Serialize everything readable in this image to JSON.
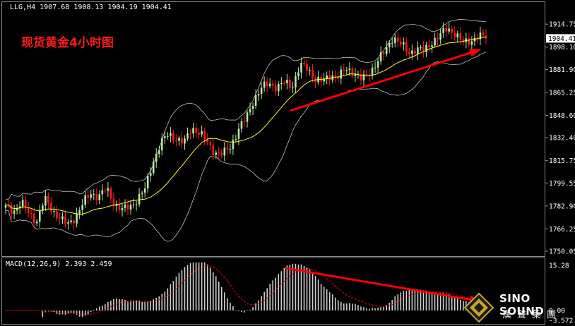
{
  "window": {
    "symbol_line": "LLG,H4  1907.68 1908.13 1904.19 1904.41",
    "title_cn": "现货黄金4小时图"
  },
  "price_axis": {
    "labels": [
      "1914.75",
      "1898.10",
      "1881.90",
      "1865.25",
      "1848.60",
      "1832.40",
      "1815.75",
      "1799.55",
      "1782.90",
      "1766.25",
      "1750.05"
    ],
    "current_price": "1904.41",
    "range": [
      1750.05,
      1921.0
    ]
  },
  "macd": {
    "label": "MACD(12,26,9) 2.393 2.459",
    "axis_labels": [
      "15.28",
      "0.00",
      "-3.572"
    ],
    "range": [
      -3.572,
      15.28
    ]
  },
  "logo": {
    "brand": "SINO SOUND",
    "chinese": "漢聲集團"
  },
  "chart_data": {
    "type": "candlestick",
    "timeframe": "H4",
    "symbol": "LLG",
    "last_bar": {
      "open": 1907.68,
      "high": 1908.13,
      "low": 1904.19,
      "close": 1904.41
    },
    "ylim": [
      1750.05,
      1921.0
    ],
    "close_path": [
      1782,
      1779,
      1786,
      1777,
      1772,
      1788,
      1780,
      1774,
      1769,
      1775,
      1785,
      1792,
      1790,
      1795,
      1785,
      1780,
      1782,
      1788,
      1795,
      1815,
      1828,
      1835,
      1832,
      1828,
      1840,
      1836,
      1829,
      1822,
      1820,
      1826,
      1838,
      1846,
      1860,
      1868,
      1872,
      1869,
      1872,
      1870,
      1885,
      1882,
      1875,
      1873,
      1878,
      1877,
      1882,
      1880,
      1874,
      1880,
      1888,
      1895,
      1906,
      1900,
      1894,
      1897,
      1895,
      1902,
      1906,
      1912,
      1908,
      1901,
      1903,
      1906,
      1904.4
    ],
    "trend_lines": [
      {
        "panel": "price",
        "from": [
          0.53,
          1852
        ],
        "to": [
          0.88,
          1896
        ],
        "color": "#ff0000"
      },
      {
        "panel": "macd",
        "from": [
          0.52,
          13.5
        ],
        "to": [
          0.88,
          3.0
        ],
        "color": "#ff0000"
      }
    ]
  },
  "colors": {
    "background": "#000000",
    "bull_candle": "#b8e6a4",
    "bear_candle": "#ff1a1a",
    "ma_line": "#ffff00",
    "bollinger": "#bfbfbf",
    "macd_hist": "#cfcfcf",
    "macd_signal": "#ff0000",
    "trend_arrow": "#ff0000"
  }
}
